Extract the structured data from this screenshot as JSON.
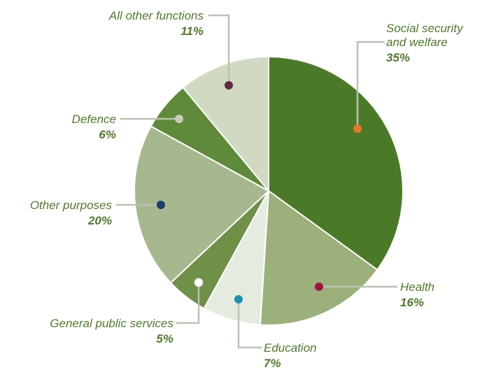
{
  "chart_data": {
    "type": "pie",
    "title": "",
    "slices": [
      {
        "label": "Social security and welfare",
        "label_lines": [
          "Social security",
          "and welfare"
        ],
        "value": 35,
        "value_label": "35%",
        "color": "#4a7a28",
        "marker_color": "#e9752a"
      },
      {
        "label": "Health",
        "label_lines": [
          "Health"
        ],
        "value": 16,
        "value_label": "16%",
        "color": "#9bb07a",
        "marker_color": "#a2143f"
      },
      {
        "label": "Education",
        "label_lines": [
          "Education"
        ],
        "value": 7,
        "value_label": "7%",
        "color": "#e6ebe0",
        "marker_color": "#1f8fb3"
      },
      {
        "label": "General public services",
        "label_lines": [
          "General public services"
        ],
        "value": 5,
        "value_label": "5%",
        "color": "#6e9047",
        "marker_color": "#ffffff"
      },
      {
        "label": "Other purposes",
        "label_lines": [
          "Other purposes"
        ],
        "value": 20,
        "value_label": "20%",
        "color": "#a7b88f",
        "marker_color": "#1c3c6e"
      },
      {
        "label": "Defence",
        "label_lines": [
          "Defence"
        ],
        "value": 6,
        "value_label": "6%",
        "color": "#5f8a3a",
        "marker_color": "#c6cbbd"
      },
      {
        "label": "All other functions",
        "label_lines": [
          "All other functions"
        ],
        "value": 11,
        "value_label": "11%",
        "color": "#d0dac3",
        "marker_color": "#5e2a48"
      }
    ],
    "start_angle_deg": 0,
    "direction": "clockwise",
    "legend": "none",
    "label_color": "#4f7a2a",
    "leader_color": "#bcc1b4"
  }
}
